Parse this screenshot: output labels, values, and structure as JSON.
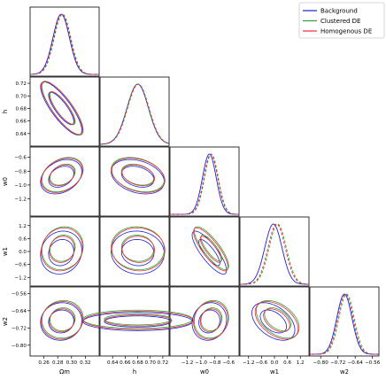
{
  "chart_data": {
    "type": "corner-plot",
    "legend_position": "top-right",
    "series": [
      {
        "name": "Background",
        "color": "#1f1fd6",
        "dash": "solid"
      },
      {
        "name": "Clustered DE",
        "color": "#2ca02c",
        "dash": "dashed"
      },
      {
        "name": "Homogenous DE",
        "color": "#e8303a",
        "dash": "dashed"
      }
    ],
    "parameters": [
      {
        "key": "om",
        "label": "Ωm",
        "range": [
          0.24,
          0.34
        ],
        "ticks": [
          "0.26",
          "0.28",
          "0.30",
          "0.32"
        ],
        "tick_values": [
          0.26,
          0.28,
          0.3,
          0.32
        ]
      },
      {
        "key": "h",
        "label": "h",
        "range": [
          0.62,
          0.73
        ],
        "ticks": [
          "0.64",
          "0.66",
          "0.68",
          "0.70",
          "0.72"
        ],
        "tick_values": [
          0.64,
          0.66,
          0.68,
          0.7,
          0.72
        ]
      },
      {
        "key": "w0",
        "label": "w0",
        "range": [
          -1.45,
          -0.45
        ],
        "ticks": [
          "−1.2",
          "−1.0",
          "−0.8",
          "−0.6"
        ],
        "tick_values": [
          -1.2,
          -1.0,
          -0.8,
          -0.6
        ]
      },
      {
        "key": "w1",
        "label": "w1",
        "range": [
          -1.6,
          1.6
        ],
        "ticks": [
          "−1.2",
          "−0.6",
          "0.0",
          "0.6",
          "1.2"
        ],
        "tick_values": [
          -1.2,
          -0.6,
          0.0,
          0.6,
          1.2
        ]
      },
      {
        "key": "w2",
        "label": "w2",
        "range": [
          -0.85,
          -0.53
        ],
        "ticks": [
          "−0.80",
          "−0.72",
          "−0.64",
          "−0.56"
        ],
        "tick_values": [
          -0.8,
          -0.72,
          -0.64,
          -0.56
        ]
      }
    ],
    "means": {
      "Background": {
        "om": 0.285,
        "h": 0.68,
        "w0": -0.88,
        "w1": -0.05,
        "w2": -0.69
      },
      "Clustered DE": {
        "om": 0.287,
        "h": 0.68,
        "w0": -0.85,
        "w1": 0.15,
        "w2": -0.68
      },
      "Homogenous DE": {
        "om": 0.286,
        "h": 0.681,
        "w0": -0.86,
        "w1": 0.1,
        "w2": -0.685
      }
    },
    "sigmas": {
      "om": 0.012,
      "h": 0.017,
      "w0": 0.1,
      "w1": 0.4,
      "w2": 0.035
    },
    "correlations": {
      "h|om": -0.82,
      "w0|om": 0.3,
      "w0|h": -0.3,
      "w1|om": 0.1,
      "w1|h": -0.05,
      "w1|w0": -0.82,
      "w2|om": 0.05,
      "w2|h": 0.0,
      "w2|w0": 0.1,
      "w2|w1": -0.45
    }
  }
}
